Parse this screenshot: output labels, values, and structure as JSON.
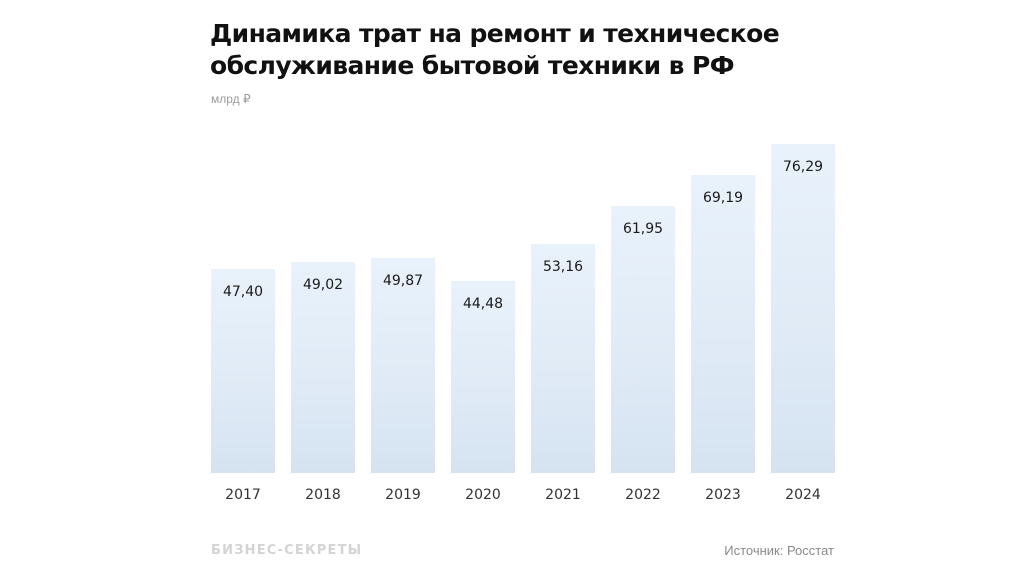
{
  "header": {
    "title": "Динамика трат на ремонт и техническое обслуживание бытовой техники в РФ",
    "unit": "млрд ₽"
  },
  "footer": {
    "brand": "БИЗНЕС-СЕКРЕТЫ",
    "source": "Источник: Росстат"
  },
  "colors": {
    "bar_top": "#e9f2fb",
    "bar_bottom": "#d5e3f1",
    "title": "#111111"
  },
  "chart_data": {
    "type": "bar",
    "title": "Динамика трат на ремонт и техническое обслуживание бытовой техники в РФ",
    "subtitle": "млрд ₽",
    "xlabel": "",
    "ylabel": "млрд ₽",
    "categories": [
      "2017",
      "2018",
      "2019",
      "2020",
      "2021",
      "2022",
      "2023",
      "2024"
    ],
    "values": [
      47.4,
      49.02,
      49.87,
      44.48,
      53.16,
      61.95,
      69.19,
      76.29
    ],
    "labels": [
      "47,40",
      "49,02",
      "49,87",
      "44,48",
      "53,16",
      "61,95",
      "69,19",
      "76,29"
    ],
    "ylim": [
      0,
      80
    ],
    "grid": false,
    "legend": null,
    "source": "Источник: Росстат"
  }
}
